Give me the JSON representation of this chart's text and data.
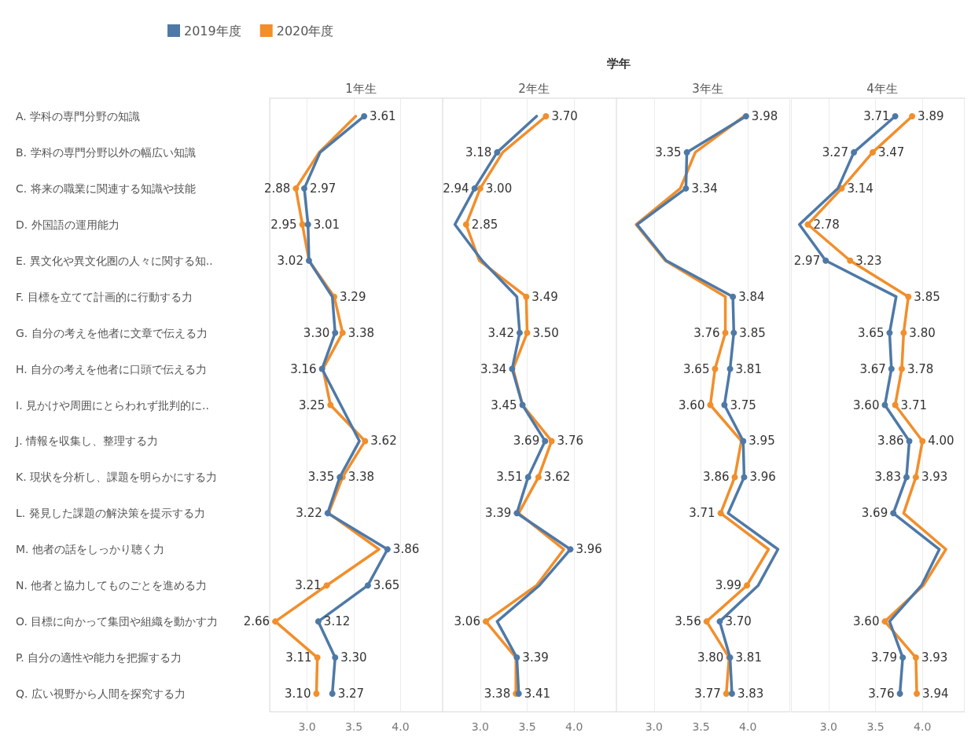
{
  "chart_data": [
    {
      "type": "line",
      "orientation": "horizontal",
      "title": "1年生",
      "annotations": [
        "学年"
      ],
      "legend": "top",
      "grid": "x",
      "marker": "circle",
      "line_style": "solid",
      "categories": [
        "A. 学科の専門分野の知識",
        "B. 学科の専門分野以外の幅広い知識",
        "C. 将来の職業に関連する知識や技能",
        "D. 外国語の運用能力",
        "E. 異文化や異文化圏の人々に関する知..",
        "F. 目標を立てて計画的に行動する力",
        "G. 自分の考えを他者に文章で伝える力",
        "H. 自分の考えを他者に口頭で伝える力",
        "I. 見かけや周囲にとらわれず批判的に..",
        "J. 情報を収集し、整理する力",
        "K. 現状を分析し、課題を明らかにする力",
        "L. 発見した課題の解決策を提示する力",
        "M. 他者の話をしっかり聴く力",
        "N. 他者と協力してものごとを進める力",
        "O. 目標に向かって集団や組織を動かす力",
        "P. 自分の適性や能力を把握する力",
        "Q. 広い視野から人間を探究する力"
      ],
      "xlim": [
        2.6,
        4.45
      ],
      "xticks": [
        {
          "value": 3,
          "label": "3.0"
        },
        {
          "value": 3.5,
          "label": "3.5"
        },
        {
          "value": 4,
          "label": "4.0"
        }
      ],
      "series": [
        {
          "name": "2019年度",
          "color": "#4e79a7",
          "values": [
            3.61,
            3.14,
            2.97,
            3.01,
            3.02,
            3.27,
            3.3,
            3.16,
            3.36,
            3.56,
            3.35,
            3.22,
            3.86,
            3.65,
            3.12,
            3.3,
            3.27
          ],
          "value_labels": [
            "3.61",
            null,
            "2.97",
            "3.01",
            "3.02",
            null,
            "3.30",
            "3.16",
            null,
            null,
            "3.35",
            "3.22",
            "3.86",
            "3.65",
            "3.12",
            "3.30",
            "3.27"
          ]
        },
        {
          "name": "2020年度",
          "color": "#f28e2b",
          "values": [
            3.52,
            3.13,
            2.88,
            2.95,
            3.02,
            3.29,
            3.38,
            3.17,
            3.25,
            3.62,
            3.38,
            3.23,
            3.77,
            3.21,
            2.66,
            3.11,
            3.1
          ],
          "value_labels": [
            null,
            null,
            "2.88",
            "2.95",
            null,
            "3.29",
            "3.38",
            null,
            "3.25",
            "3.62",
            "3.38",
            null,
            null,
            "3.21",
            "2.66",
            "3.11",
            "3.10"
          ]
        }
      ]
    },
    {
      "type": "line",
      "orientation": "horizontal",
      "title": "2年生",
      "grid": "x",
      "marker": "circle",
      "line_style": "solid",
      "tick_labels": "x",
      "categories": [
        null,
        null,
        null,
        null,
        null,
        null,
        null,
        null,
        null,
        null,
        null,
        null,
        null,
        null,
        null,
        null,
        null
      ],
      "xlim": [
        2.6,
        4.45
      ],
      "xticks": [
        {
          "value": 3,
          "label": "3.0"
        },
        {
          "value": 3.5,
          "label": "3.5"
        },
        {
          "value": 4,
          "label": "4.0"
        }
      ],
      "series": [
        {
          "color": "#4e79a7",
          "values": [
            3.6,
            3.18,
            2.94,
            2.73,
            3.02,
            3.39,
            3.42,
            3.34,
            3.45,
            3.69,
            3.51,
            3.39,
            3.96,
            3.63,
            3.18,
            3.39,
            3.41
          ],
          "value_labels": [
            null,
            "3.18",
            "2.94",
            null,
            null,
            null,
            "3.42",
            "3.34",
            "3.45",
            "3.69",
            "3.51",
            "3.39",
            "3.96",
            null,
            null,
            "3.39",
            "3.41"
          ]
        },
        {
          "color": "#f28e2b",
          "values": [
            3.7,
            3.24,
            3.0,
            2.85,
            2.99,
            3.49,
            3.5,
            3.35,
            3.45,
            3.76,
            3.62,
            3.41,
            3.89,
            3.6,
            3.06,
            3.38,
            3.38
          ],
          "value_labels": [
            "3.70",
            null,
            "3.00",
            "2.85",
            null,
            "3.49",
            "3.50",
            null,
            null,
            "3.76",
            "3.62",
            null,
            null,
            null,
            "3.06",
            null,
            "3.38"
          ]
        }
      ]
    },
    {
      "type": "line",
      "orientation": "horizontal",
      "title": "3年生",
      "grid": "x",
      "marker": "circle",
      "line_style": "solid",
      "tick_labels": "x",
      "categories": [
        null,
        null,
        null,
        null,
        null,
        null,
        null,
        null,
        null,
        null,
        null,
        null,
        null,
        null,
        null,
        null,
        null
      ],
      "xlim": [
        2.6,
        4.45
      ],
      "xticks": [
        {
          "value": 3,
          "label": "3.0"
        },
        {
          "value": 3.5,
          "label": "3.5"
        },
        {
          "value": 4,
          "label": "4.0"
        }
      ],
      "series": [
        {
          "color": "#4e79a7",
          "values": [
            3.98,
            3.35,
            3.34,
            2.82,
            3.13,
            3.84,
            3.85,
            3.81,
            3.75,
            3.95,
            3.96,
            3.79,
            4.32,
            4.11,
            3.7,
            3.81,
            3.83
          ],
          "value_labels": [
            "3.98",
            "3.35",
            "3.34",
            null,
            null,
            "3.84",
            "3.85",
            "3.81",
            "3.75",
            "3.95",
            "3.96",
            null,
            null,
            null,
            "3.70",
            "3.81",
            "3.83"
          ]
        },
        {
          "color": "#f28e2b",
          "values": [
            3.96,
            3.44,
            3.28,
            2.81,
            3.12,
            3.76,
            3.76,
            3.65,
            3.6,
            3.93,
            3.86,
            3.71,
            4.22,
            3.99,
            3.56,
            3.8,
            3.77
          ],
          "value_labels": [
            null,
            null,
            null,
            null,
            null,
            null,
            "3.76",
            "3.65",
            "3.60",
            null,
            "3.86",
            "3.71",
            null,
            "3.99",
            "3.56",
            "3.80",
            "3.77"
          ]
        }
      ]
    },
    {
      "type": "line",
      "orientation": "horizontal",
      "title": "4年生",
      "grid": "x",
      "marker": "circle",
      "line_style": "solid",
      "tick_labels": "x",
      "categories": [
        null,
        null,
        null,
        null,
        null,
        null,
        null,
        null,
        null,
        null,
        null,
        null,
        null,
        null,
        null,
        null,
        null
      ],
      "xlim": [
        2.6,
        4.45
      ],
      "xticks": [
        {
          "value": 3,
          "label": "3.0"
        },
        {
          "value": 3.5,
          "label": "3.5"
        },
        {
          "value": 4,
          "label": "4.0"
        }
      ],
      "series": [
        {
          "color": "#4e79a7",
          "values": [
            3.71,
            3.27,
            3.1,
            2.69,
            2.97,
            3.72,
            3.65,
            3.67,
            3.6,
            3.86,
            3.83,
            3.69,
            4.18,
            3.99,
            3.65,
            3.79,
            3.76
          ],
          "value_labels": [
            "3.71",
            "3.27",
            null,
            null,
            "2.97",
            null,
            "3.65",
            "3.67",
            "3.60",
            "3.86",
            "3.83",
            "3.69",
            null,
            null,
            null,
            "3.79",
            "3.76"
          ]
        },
        {
          "color": "#f28e2b",
          "values": [
            3.89,
            3.47,
            3.14,
            2.78,
            3.23,
            3.85,
            3.8,
            3.78,
            3.71,
            4.0,
            3.93,
            3.8,
            4.25,
            4.01,
            3.6,
            3.93,
            3.94
          ],
          "value_labels": [
            "3.89",
            "3.47",
            "3.14",
            "2.78",
            "3.23",
            "3.85",
            "3.80",
            "3.78",
            "3.71",
            "4.00",
            "3.93",
            null,
            null,
            null,
            "3.60",
            "3.93",
            "3.94"
          ]
        }
      ]
    }
  ]
}
